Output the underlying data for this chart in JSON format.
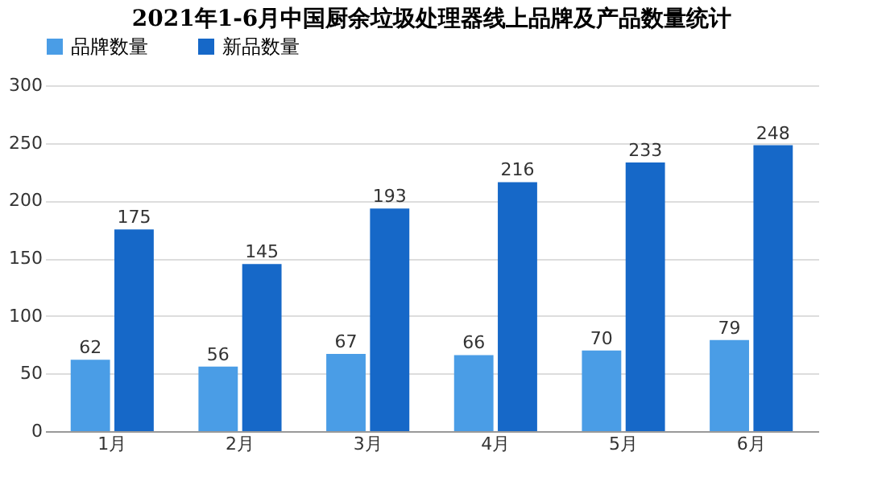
{
  "chart_data": {
    "type": "bar",
    "title": "2021年1-6月中国厨余垃圾处理器线上品牌及产品数量统计",
    "categories": [
      "1月",
      "2月",
      "3月",
      "4月",
      "5月",
      "6月"
    ],
    "series": [
      {
        "name": "品牌数量",
        "color": "#4a9de6",
        "values": [
          62,
          56,
          67,
          66,
          70,
          79
        ]
      },
      {
        "name": "新品数量",
        "color": "#1668c8",
        "values": [
          175,
          145,
          193,
          216,
          233,
          248
        ]
      }
    ],
    "ylim": [
      0,
      300
    ],
    "yticks": [
      0,
      50,
      100,
      150,
      200,
      250,
      300
    ],
    "grid": "y",
    "legend": "top",
    "data_labels": true
  }
}
